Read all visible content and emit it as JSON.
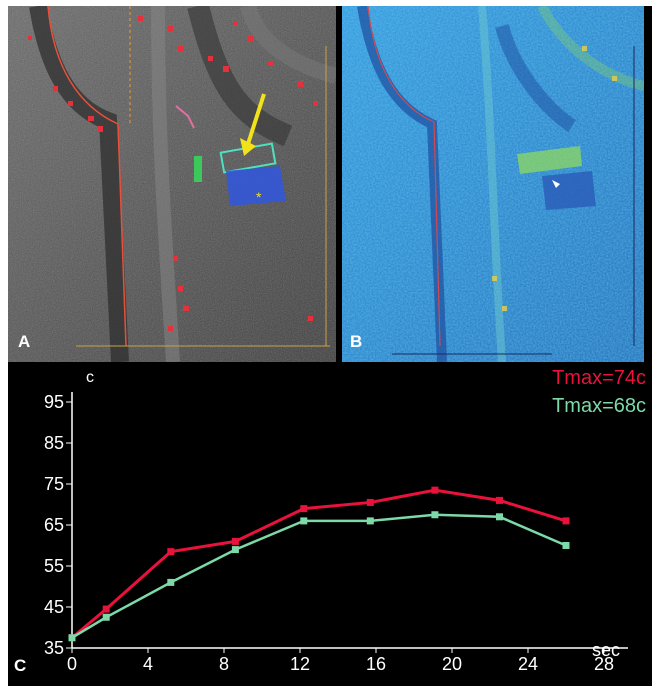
{
  "panels": {
    "a_label": "A",
    "b_label": "B",
    "c_label": "C"
  },
  "chart_data": {
    "type": "line",
    "title": "",
    "xlabel": "sec",
    "ylabel": "c",
    "ylim": [
      35,
      95
    ],
    "xlim": [
      0,
      28
    ],
    "x_ticks": [
      "0",
      "4",
      "8",
      "12",
      "16",
      "20",
      "24",
      "28"
    ],
    "y_ticks": [
      "35",
      "45",
      "55",
      "65",
      "75",
      "85",
      "95"
    ],
    "grid": false,
    "legend_position": "top-right",
    "series": [
      {
        "name": "Tmax=74c",
        "color": "#e8123c",
        "x": [
          0,
          1.8,
          5.2,
          8.6,
          12.2,
          15.7,
          19.1,
          22.5,
          26.0
        ],
        "y": [
          37.5,
          44.5,
          58.5,
          61,
          69,
          70.5,
          73.5,
          71,
          66
        ]
      },
      {
        "name": "Tmax=68c",
        "color": "#7dd9a8",
        "x": [
          0,
          1.8,
          5.2,
          8.6,
          12.2,
          15.7,
          19.1,
          22.5,
          26.0
        ],
        "y": [
          37.5,
          42.5,
          51,
          59,
          66,
          66,
          67.5,
          67,
          60
        ]
      }
    ]
  }
}
